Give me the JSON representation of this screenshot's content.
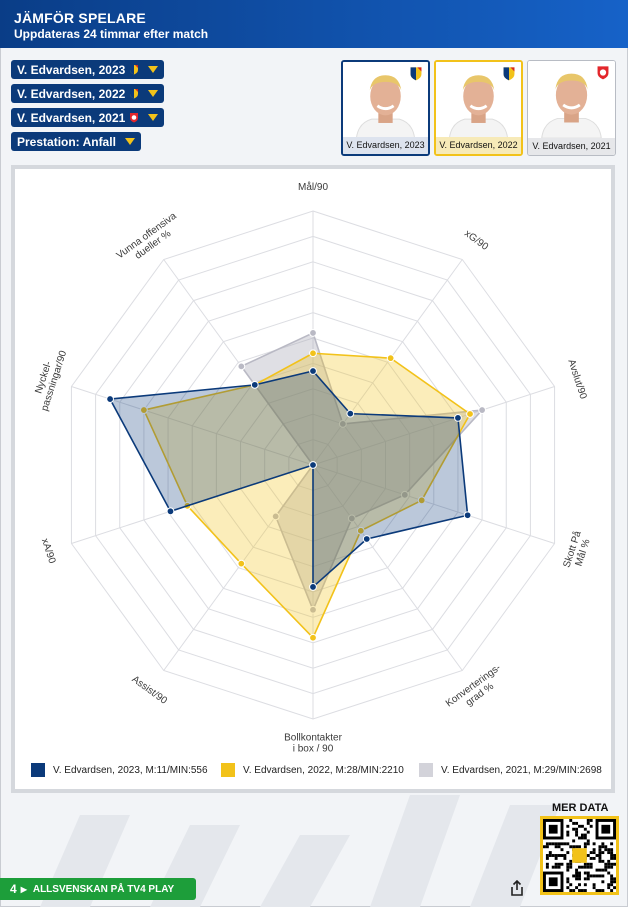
{
  "header": {
    "title": "JÄMFÖR SPELARE",
    "subtitle": "Uppdateras 24 timmar efter match"
  },
  "selectors": [
    {
      "label": "V. Edvardsen, 2023",
      "crest": "djurgarden-crest-icon"
    },
    {
      "label": "V. Edvardsen, 2022",
      "crest": "djurgarden-crest-icon"
    },
    {
      "label": "V. Edvardsen, 2021",
      "crest": "degerfors-crest-icon"
    },
    {
      "label": "Prestation: Anfall",
      "crest": null
    }
  ],
  "cards": [
    {
      "caption": "V. Edvardsen, 2023",
      "crest": "djurgarden-crest-icon"
    },
    {
      "caption": "V. Edvardsen, 2022",
      "crest": "djurgarden-crest-icon"
    },
    {
      "caption": "V. Edvardsen, 2021",
      "crest": "degerfors-crest-icon"
    }
  ],
  "colors": {
    "navy": "#0b3a7a",
    "gold": "#f2c21a",
    "grey": "#b9b9c4",
    "tv4_green": "#1d9e3a"
  },
  "chart_data": {
    "type": "radar",
    "title": "",
    "axes": [
      [
        "Mål/90"
      ],
      [
        "xG/90"
      ],
      [
        "Avslut/90"
      ],
      [
        "Skott På",
        "Mål %"
      ],
      [
        "Konverterings-",
        "grad %"
      ],
      [
        "Bollkontakter",
        "i box / 90"
      ],
      [
        "Assist/90"
      ],
      [
        "xA/90"
      ],
      [
        "Nyckel-",
        "passningar/90"
      ],
      [
        "Vunna offensiva",
        "dueller %"
      ]
    ],
    "scale": [
      0,
      100
    ],
    "rings": 10,
    "series": [
      {
        "name": "V. Edvardsen, 2023, M:11/MIN:556",
        "color": "#0b3a7a",
        "values": [
          37,
          25,
          60,
          64,
          36,
          48,
          0,
          59,
          84,
          39
        ]
      },
      {
        "name": "V. Edvardsen, 2022, M:28/MIN:2210",
        "color": "#f2c21a",
        "values": [
          44,
          52,
          65,
          45,
          32,
          68,
          48,
          52,
          70,
          39
        ]
      },
      {
        "name": "V. Edvardsen, 2021, M:29/MIN:2698",
        "color": "#b9b9c4",
        "values": [
          52,
          20,
          70,
          38,
          26,
          57,
          25,
          0,
          0,
          48
        ]
      }
    ]
  },
  "footer": {
    "mer_data": "MER DATA",
    "tv4_number": "4",
    "tv4_label": "ALLSVENSKAN PÅ TV4 PLAY"
  }
}
